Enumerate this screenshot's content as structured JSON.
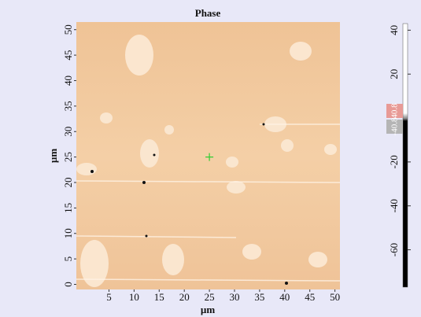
{
  "chart_data": {
    "type": "image",
    "title": "Phase",
    "x_label": "µm",
    "y_label": "µm",
    "xlim": [
      -1.5,
      51
    ],
    "ylim": [
      -1,
      51.5
    ],
    "xticks": [
      5,
      10,
      15,
      20,
      25,
      30,
      35,
      40,
      45,
      50
    ],
    "yticks": [
      0,
      5,
      10,
      15,
      20,
      25,
      30,
      35,
      40,
      45,
      50
    ],
    "cursor": [
      25,
      25
    ],
    "colorbar": {
      "clim": [
        -77,
        43
      ],
      "ticks": [
        40,
        20,
        -20,
        -40,
        -60
      ],
      "markers": [
        "40.8",
        "-40.8"
      ]
    }
  }
}
